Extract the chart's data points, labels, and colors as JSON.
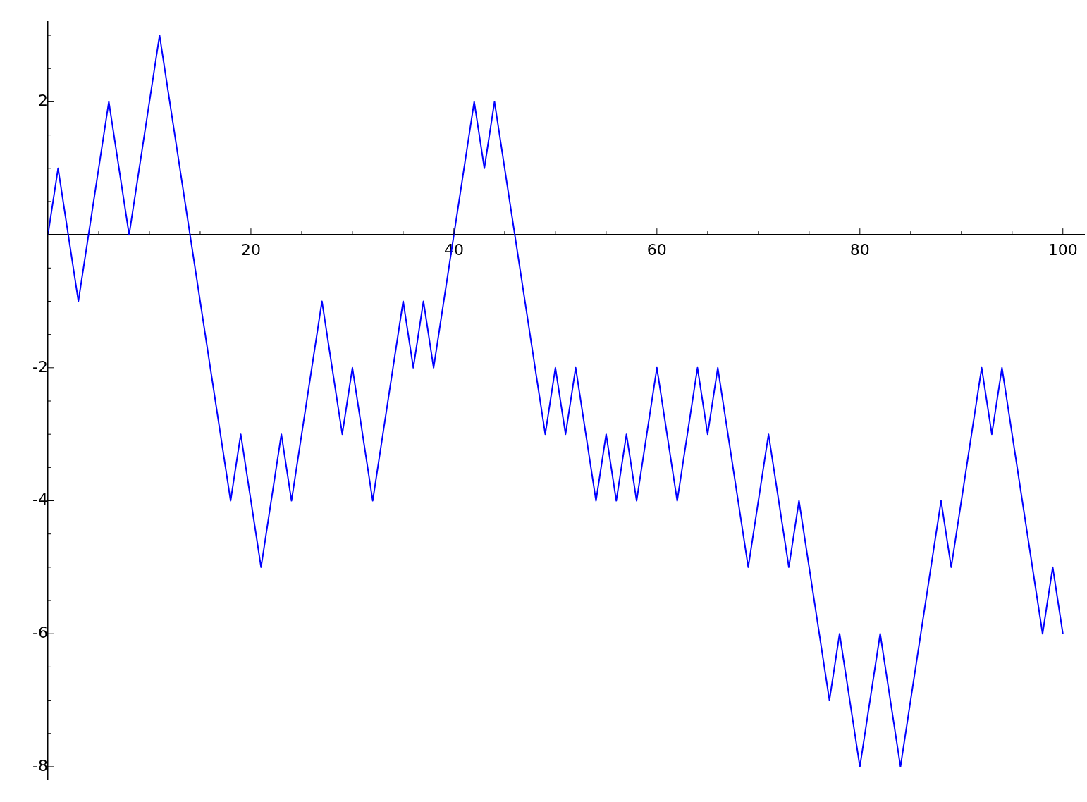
{
  "chart_data": {
    "type": "line",
    "x": [
      0,
      1,
      3,
      6,
      8,
      11,
      18,
      19,
      21,
      23,
      24,
      27,
      29,
      30,
      32,
      35,
      36,
      37,
      38,
      42,
      43,
      44,
      49,
      50,
      51,
      52,
      54,
      55,
      56,
      57,
      58,
      60,
      62,
      64,
      65,
      66,
      69,
      71,
      73,
      74,
      77,
      78,
      80,
      82,
      84,
      88,
      89,
      92,
      93,
      94,
      98,
      99,
      100
    ],
    "series": [
      {
        "color": "#0000ff",
        "values": [
          0,
          1,
          -1,
          2,
          0,
          3,
          -4,
          -3,
          -5,
          -3,
          -4,
          -1,
          -3,
          -2,
          -4,
          -1,
          -2,
          -1,
          -2,
          2,
          1,
          2,
          -3,
          -2,
          -3,
          -2,
          -4,
          -3,
          -4,
          -3,
          -4,
          -2,
          -4,
          -2,
          -3,
          -2,
          -5,
          -3,
          -5,
          -4,
          -7,
          -6,
          -8,
          -6,
          -8,
          -4,
          -5,
          -2,
          -3,
          -2,
          -6,
          -5,
          -6
        ]
      }
    ],
    "xlim": [
      0,
      102.1
    ],
    "ylim": [
      -8.2,
      3.2
    ],
    "xticks": [
      {
        "value": 0,
        "label": null
      },
      {
        "value": 5,
        "label": null
      },
      {
        "value": 10,
        "label": null
      },
      {
        "value": 15,
        "label": null
      },
      20,
      {
        "value": 25,
        "label": null
      },
      {
        "value": 30,
        "label": null
      },
      {
        "value": 35,
        "label": null
      },
      40,
      {
        "value": 45,
        "label": null
      },
      {
        "value": 50,
        "label": null
      },
      {
        "value": 55,
        "label": null
      },
      60,
      {
        "value": 65,
        "label": null
      },
      {
        "value": 70,
        "label": null
      },
      {
        "value": 75,
        "label": null
      },
      80,
      {
        "value": 85,
        "label": null
      },
      {
        "value": 90,
        "label": null
      },
      {
        "value": 95,
        "label": null
      },
      100
    ],
    "yticks": [
      -8,
      {
        "value": -7.5,
        "label": null
      },
      {
        "value": -7,
        "label": null
      },
      {
        "value": -6.5,
        "label": null
      },
      -6,
      {
        "value": -5.5,
        "label": null
      },
      {
        "value": -5,
        "label": null
      },
      {
        "value": -4.5,
        "label": null
      },
      -4,
      {
        "value": -3.5,
        "label": null
      },
      {
        "value": -3,
        "label": null
      },
      {
        "value": -2.5,
        "label": null
      },
      -2,
      {
        "value": -1.5,
        "label": null
      },
      {
        "value": -1,
        "label": null
      },
      {
        "value": -0.5,
        "label": null
      },
      {
        "value": 0,
        "label": null
      },
      {
        "value": 0.5,
        "label": null
      },
      {
        "value": 1,
        "label": null
      },
      {
        "value": 1.5,
        "label": null
      },
      2,
      {
        "value": 2.5,
        "label": null
      },
      {
        "value": 3,
        "label": null
      }
    ],
    "legend": false,
    "marker": "none",
    "line_style": "solid"
  }
}
